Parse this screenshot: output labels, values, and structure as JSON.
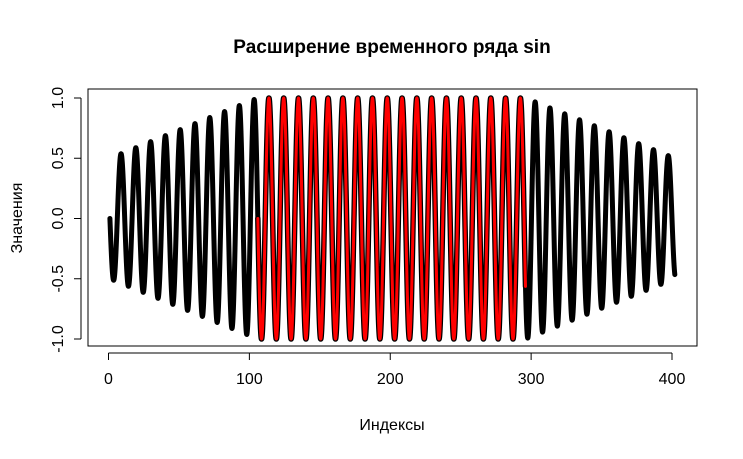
{
  "chart_data": {
    "type": "line",
    "title": "Расширение временного ряда sin",
    "xlabel": "Индексы",
    "ylabel": "Значения",
    "xlim": [
      0,
      400
    ],
    "ylim": [
      -1.0,
      1.0
    ],
    "x_ticks": [
      0,
      100,
      200,
      300,
      400
    ],
    "x_tick_labels": [
      "0",
      "100",
      "200",
      "300",
      "400"
    ],
    "y_ticks": [
      -1.0,
      -0.5,
      0.0,
      0.5,
      1.0
    ],
    "y_tick_labels": [
      "-1.0",
      "-0.5",
      "0.0",
      "0.5",
      "1.0"
    ],
    "grid": false,
    "legend": "none",
    "series": [
      {
        "color": "#000000",
        "segments": [
          {
            "x_start": 1,
            "x_end": 106,
            "amplitude_start": 0.5,
            "amplitude_end": 1.0
          },
          {
            "x_start": 296,
            "x_end": 402,
            "amplitude_start": 1.0,
            "amplitude_end": 0.5
          }
        ],
        "period": 10.5
      },
      {
        "color": "#ff0000",
        "outline_color": "#000000",
        "x_start": 106,
        "x_end": 296,
        "amplitude": 1.0,
        "period": 10.5
      }
    ]
  }
}
